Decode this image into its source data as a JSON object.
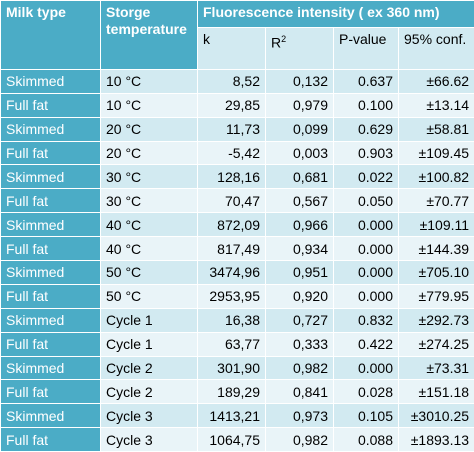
{
  "table": {
    "header": {
      "milk_type": "Milk type",
      "temperature": "Storge temperature",
      "group": "Fluorescence intensity ( ex 360 nm)",
      "columns": {
        "k": "k",
        "r2": {
          "base": "R",
          "sup": "2"
        },
        "p": "P-value",
        "conf": "95% conf."
      }
    },
    "rows": [
      [
        "Skimmed",
        "10 °C",
        "8,52",
        "0,132",
        "0.637",
        "±66.62"
      ],
      [
        "Full fat",
        "10 °C",
        "29,85",
        "0,979",
        "0.100",
        "±13.14"
      ],
      [
        "Skimmed",
        "20 °C",
        "11,73",
        "0,099",
        "0.629",
        "±58.81"
      ],
      [
        "Full fat",
        "20 °C",
        "-5,42",
        "0,003",
        "0.903",
        "±109.45"
      ],
      [
        "Skimmed",
        "30 °C",
        "128,16",
        "0,681",
        "0.022",
        "±100.82"
      ],
      [
        "Full fat",
        "30 °C",
        "70,47",
        "0,567",
        "0.050",
        "±70.77"
      ],
      [
        "Skimmed",
        "40 °C",
        "872,09",
        "0,966",
        "0.000",
        "±109.11"
      ],
      [
        "Full fat",
        "40 °C",
        "817,49",
        "0,934",
        "0.000",
        "±144.39"
      ],
      [
        "Skimmed",
        "50 °C",
        "3474,96",
        "0,951",
        "0.000",
        "±705.10"
      ],
      [
        "Full fat",
        "50 °C",
        "2953,95",
        "0,920",
        "0.000",
        "±779.95"
      ],
      [
        "Skimmed",
        "Cycle 1",
        "16,38",
        "0,727",
        "0.832",
        "±292.73"
      ],
      [
        "Full fat",
        "Cycle 1",
        "63,77",
        "0,333",
        "0.422",
        "±274.25"
      ],
      [
        "Skimmed",
        "Cycle 2",
        "301,90",
        "0,982",
        "0.000",
        "±73.31"
      ],
      [
        "Full fat",
        "Cycle 2",
        "189,29",
        "0,841",
        "0.028",
        "±151.18"
      ],
      [
        "Skimmed",
        "Cycle 3",
        "1413,21",
        "0,973",
        "0.105",
        "±3010.25"
      ],
      [
        "Full fat",
        "Cycle 3",
        "1064,75",
        "0,982",
        "0.088",
        "±1893.13"
      ]
    ]
  }
}
